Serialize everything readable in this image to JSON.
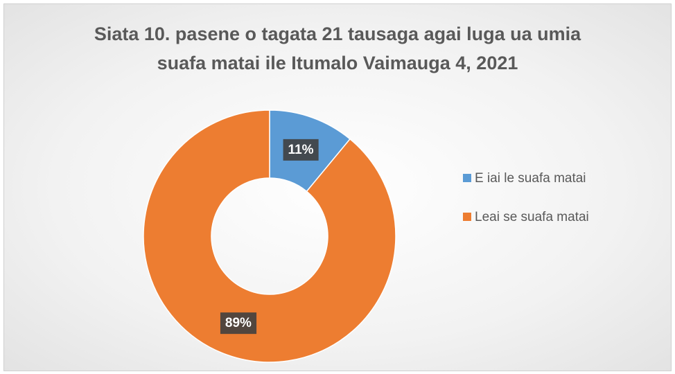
{
  "chart_data": {
    "type": "donut",
    "title": "Siata 10. pasene o tagata 21 tausaga agai luga ua umia suafa matai ile Itumalo Vaimauga 4, 2021",
    "categories": [
      "E iai le suafa matai",
      "Leai se suafa matai"
    ],
    "values": [
      11,
      89
    ],
    "value_labels": [
      "11%",
      "89%"
    ],
    "colors": [
      "#5b9bd5",
      "#ed7d31"
    ],
    "legend": "right"
  }
}
